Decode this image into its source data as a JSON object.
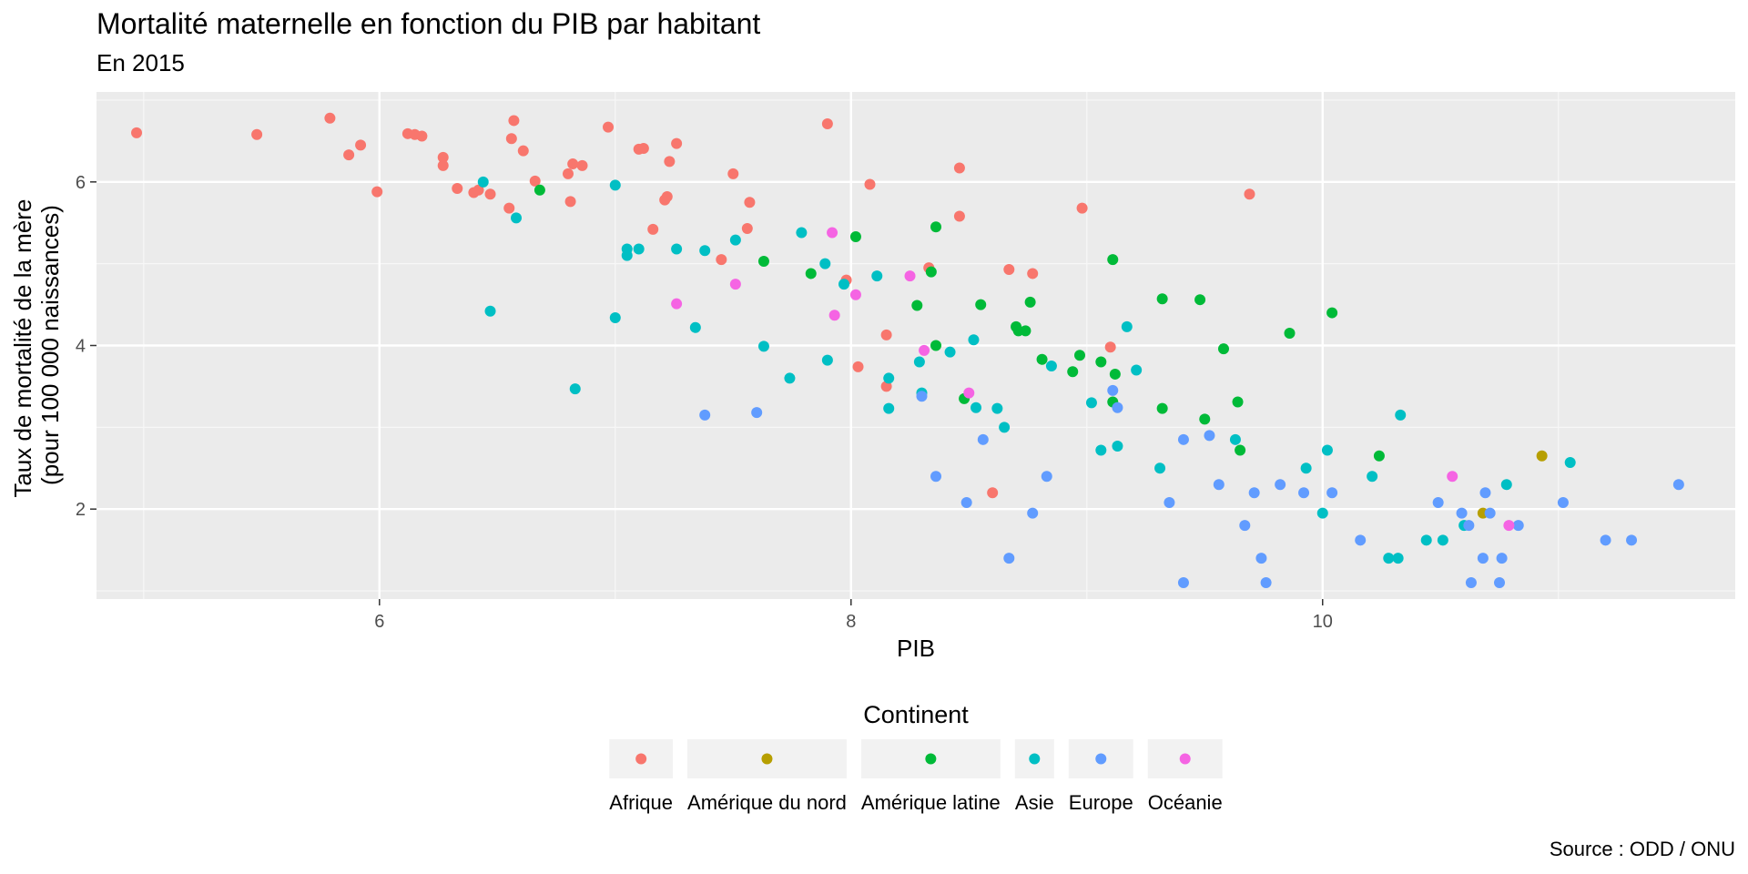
{
  "title": "Mortalité maternelle en fonction du PIB par habitant",
  "subtitle": "En 2015",
  "caption": "Source : ODD / ONU",
  "chart_data": {
    "type": "scatter",
    "xlabel": "PIB",
    "ylabel_lines": [
      "Taux de mortalité de la mère",
      "(pour 100 000 naissances)"
    ],
    "xlim": [
      4.8,
      11.75
    ],
    "ylim": [
      0.9,
      7.1
    ],
    "xticks": [
      6,
      8,
      10
    ],
    "yticks": [
      2,
      4,
      6
    ],
    "grid": true,
    "legend_title": "Continent",
    "legend_position": "bottom",
    "series": [
      {
        "name": "Afrique",
        "color": "#F8766D",
        "points": [
          [
            4.97,
            6.6
          ],
          [
            5.48,
            6.58
          ],
          [
            5.79,
            6.78
          ],
          [
            5.87,
            6.33
          ],
          [
            5.92,
            6.45
          ],
          [
            5.99,
            5.88
          ],
          [
            6.12,
            6.59
          ],
          [
            6.15,
            6.58
          ],
          [
            6.18,
            6.56
          ],
          [
            6.27,
            6.3
          ],
          [
            6.27,
            6.2
          ],
          [
            6.33,
            5.92
          ],
          [
            6.4,
            5.87
          ],
          [
            6.42,
            5.9
          ],
          [
            6.47,
            5.85
          ],
          [
            6.55,
            5.68
          ],
          [
            6.56,
            6.53
          ],
          [
            6.57,
            6.75
          ],
          [
            6.61,
            6.38
          ],
          [
            6.66,
            6.01
          ],
          [
            6.8,
            6.1
          ],
          [
            6.81,
            5.76
          ],
          [
            6.82,
            6.22
          ],
          [
            6.86,
            6.2
          ],
          [
            6.97,
            6.67
          ],
          [
            7.1,
            6.4
          ],
          [
            7.12,
            6.41
          ],
          [
            7.16,
            5.42
          ],
          [
            7.21,
            5.78
          ],
          [
            7.22,
            5.82
          ],
          [
            7.23,
            6.25
          ],
          [
            7.26,
            6.47
          ],
          [
            7.45,
            5.05
          ],
          [
            7.5,
            6.1
          ],
          [
            7.56,
            5.43
          ],
          [
            7.57,
            5.75
          ],
          [
            7.9,
            6.71
          ],
          [
            7.98,
            4.8
          ],
          [
            8.03,
            3.74
          ],
          [
            8.08,
            5.97
          ],
          [
            8.15,
            4.13
          ],
          [
            8.15,
            3.5
          ],
          [
            8.33,
            4.95
          ],
          [
            8.46,
            5.58
          ],
          [
            8.46,
            6.17
          ],
          [
            8.6,
            2.2
          ],
          [
            8.67,
            4.93
          ],
          [
            8.77,
            4.88
          ],
          [
            8.98,
            5.68
          ],
          [
            9.1,
            3.98
          ],
          [
            9.69,
            5.85
          ]
        ]
      },
      {
        "name": "Amérique du nord",
        "color": "#B79F00",
        "points": [
          [
            10.68,
            1.95
          ],
          [
            10.93,
            2.65
          ]
        ]
      },
      {
        "name": "Amérique latine",
        "color": "#00BA38",
        "points": [
          [
            6.68,
            5.9
          ],
          [
            7.63,
            5.03
          ],
          [
            7.83,
            4.88
          ],
          [
            8.02,
            5.33
          ],
          [
            8.28,
            4.49
          ],
          [
            8.34,
            4.9
          ],
          [
            8.36,
            5.45
          ],
          [
            8.36,
            4.0
          ],
          [
            8.48,
            3.35
          ],
          [
            8.55,
            4.5
          ],
          [
            8.7,
            4.23
          ],
          [
            8.71,
            4.18
          ],
          [
            8.74,
            4.18
          ],
          [
            8.76,
            4.53
          ],
          [
            8.81,
            3.83
          ],
          [
            8.94,
            3.68
          ],
          [
            8.97,
            3.88
          ],
          [
            9.06,
            3.8
          ],
          [
            9.11,
            5.05
          ],
          [
            9.12,
            3.65
          ],
          [
            9.11,
            3.31
          ],
          [
            9.32,
            4.57
          ],
          [
            9.32,
            3.23
          ],
          [
            9.48,
            4.56
          ],
          [
            9.5,
            3.1
          ],
          [
            9.58,
            3.96
          ],
          [
            9.64,
            3.31
          ],
          [
            9.65,
            2.72
          ],
          [
            9.86,
            4.15
          ],
          [
            10.04,
            4.4
          ],
          [
            10.24,
            2.65
          ]
        ]
      },
      {
        "name": "Asie",
        "color": "#00BFC4",
        "points": [
          [
            6.44,
            6.0
          ],
          [
            6.47,
            4.42
          ],
          [
            6.58,
            5.56
          ],
          [
            6.83,
            3.47
          ],
          [
            7.0,
            5.96
          ],
          [
            7.0,
            4.34
          ],
          [
            7.05,
            5.18
          ],
          [
            7.05,
            5.1
          ],
          [
            7.1,
            5.18
          ],
          [
            7.26,
            5.18
          ],
          [
            7.34,
            4.22
          ],
          [
            7.38,
            5.16
          ],
          [
            7.51,
            5.29
          ],
          [
            7.63,
            3.99
          ],
          [
            7.74,
            3.6
          ],
          [
            7.79,
            5.38
          ],
          [
            7.89,
            5.0
          ],
          [
            7.9,
            3.82
          ],
          [
            7.97,
            4.75
          ],
          [
            8.11,
            4.85
          ],
          [
            8.16,
            3.6
          ],
          [
            8.16,
            3.23
          ],
          [
            8.29,
            3.8
          ],
          [
            8.3,
            3.42
          ],
          [
            8.42,
            3.92
          ],
          [
            8.52,
            4.07
          ],
          [
            8.53,
            3.24
          ],
          [
            8.62,
            3.23
          ],
          [
            8.65,
            3.0
          ],
          [
            8.85,
            3.75
          ],
          [
            9.02,
            3.3
          ],
          [
            9.06,
            2.72
          ],
          [
            9.13,
            2.77
          ],
          [
            9.17,
            4.23
          ],
          [
            9.21,
            3.7
          ],
          [
            9.31,
            2.5
          ],
          [
            9.63,
            2.85
          ],
          [
            9.93,
            2.5
          ],
          [
            10.0,
            1.95
          ],
          [
            10.02,
            2.72
          ],
          [
            10.21,
            2.4
          ],
          [
            10.28,
            1.4
          ],
          [
            10.32,
            1.4
          ],
          [
            10.33,
            3.15
          ],
          [
            10.44,
            1.62
          ],
          [
            10.51,
            1.62
          ],
          [
            10.6,
            1.8
          ],
          [
            10.78,
            2.3
          ],
          [
            11.05,
            2.57
          ]
        ]
      },
      {
        "name": "Europe",
        "color": "#619CFF",
        "points": [
          [
            7.38,
            3.15
          ],
          [
            7.6,
            3.18
          ],
          [
            8.3,
            3.38
          ],
          [
            8.36,
            2.4
          ],
          [
            8.49,
            2.08
          ],
          [
            8.56,
            2.85
          ],
          [
            8.67,
            1.4
          ],
          [
            8.77,
            1.95
          ],
          [
            8.83,
            2.4
          ],
          [
            9.11,
            3.45
          ],
          [
            9.13,
            3.24
          ],
          [
            9.35,
            2.08
          ],
          [
            9.41,
            2.85
          ],
          [
            9.41,
            1.1
          ],
          [
            9.52,
            2.9
          ],
          [
            9.56,
            2.3
          ],
          [
            9.67,
            1.8
          ],
          [
            9.71,
            2.2
          ],
          [
            9.74,
            1.4
          ],
          [
            9.76,
            1.1
          ],
          [
            9.82,
            2.3
          ],
          [
            9.92,
            2.2
          ],
          [
            10.04,
            2.2
          ],
          [
            10.16,
            1.62
          ],
          [
            10.49,
            2.08
          ],
          [
            10.59,
            1.95
          ],
          [
            10.62,
            1.8
          ],
          [
            10.63,
            1.1
          ],
          [
            10.68,
            1.4
          ],
          [
            10.69,
            2.2
          ],
          [
            10.71,
            1.95
          ],
          [
            10.75,
            1.1
          ],
          [
            10.76,
            1.4
          ],
          [
            10.83,
            1.8
          ],
          [
            11.02,
            2.08
          ],
          [
            11.2,
            1.62
          ],
          [
            11.31,
            1.62
          ],
          [
            11.51,
            2.3
          ]
        ]
      },
      {
        "name": "Océanie",
        "color": "#F564E3",
        "points": [
          [
            7.26,
            4.51
          ],
          [
            7.51,
            4.75
          ],
          [
            7.92,
            5.38
          ],
          [
            7.93,
            4.37
          ],
          [
            8.02,
            4.62
          ],
          [
            8.25,
            4.85
          ],
          [
            8.31,
            3.94
          ],
          [
            8.5,
            3.42
          ],
          [
            10.55,
            2.4
          ],
          [
            10.79,
            1.8
          ]
        ]
      }
    ]
  }
}
